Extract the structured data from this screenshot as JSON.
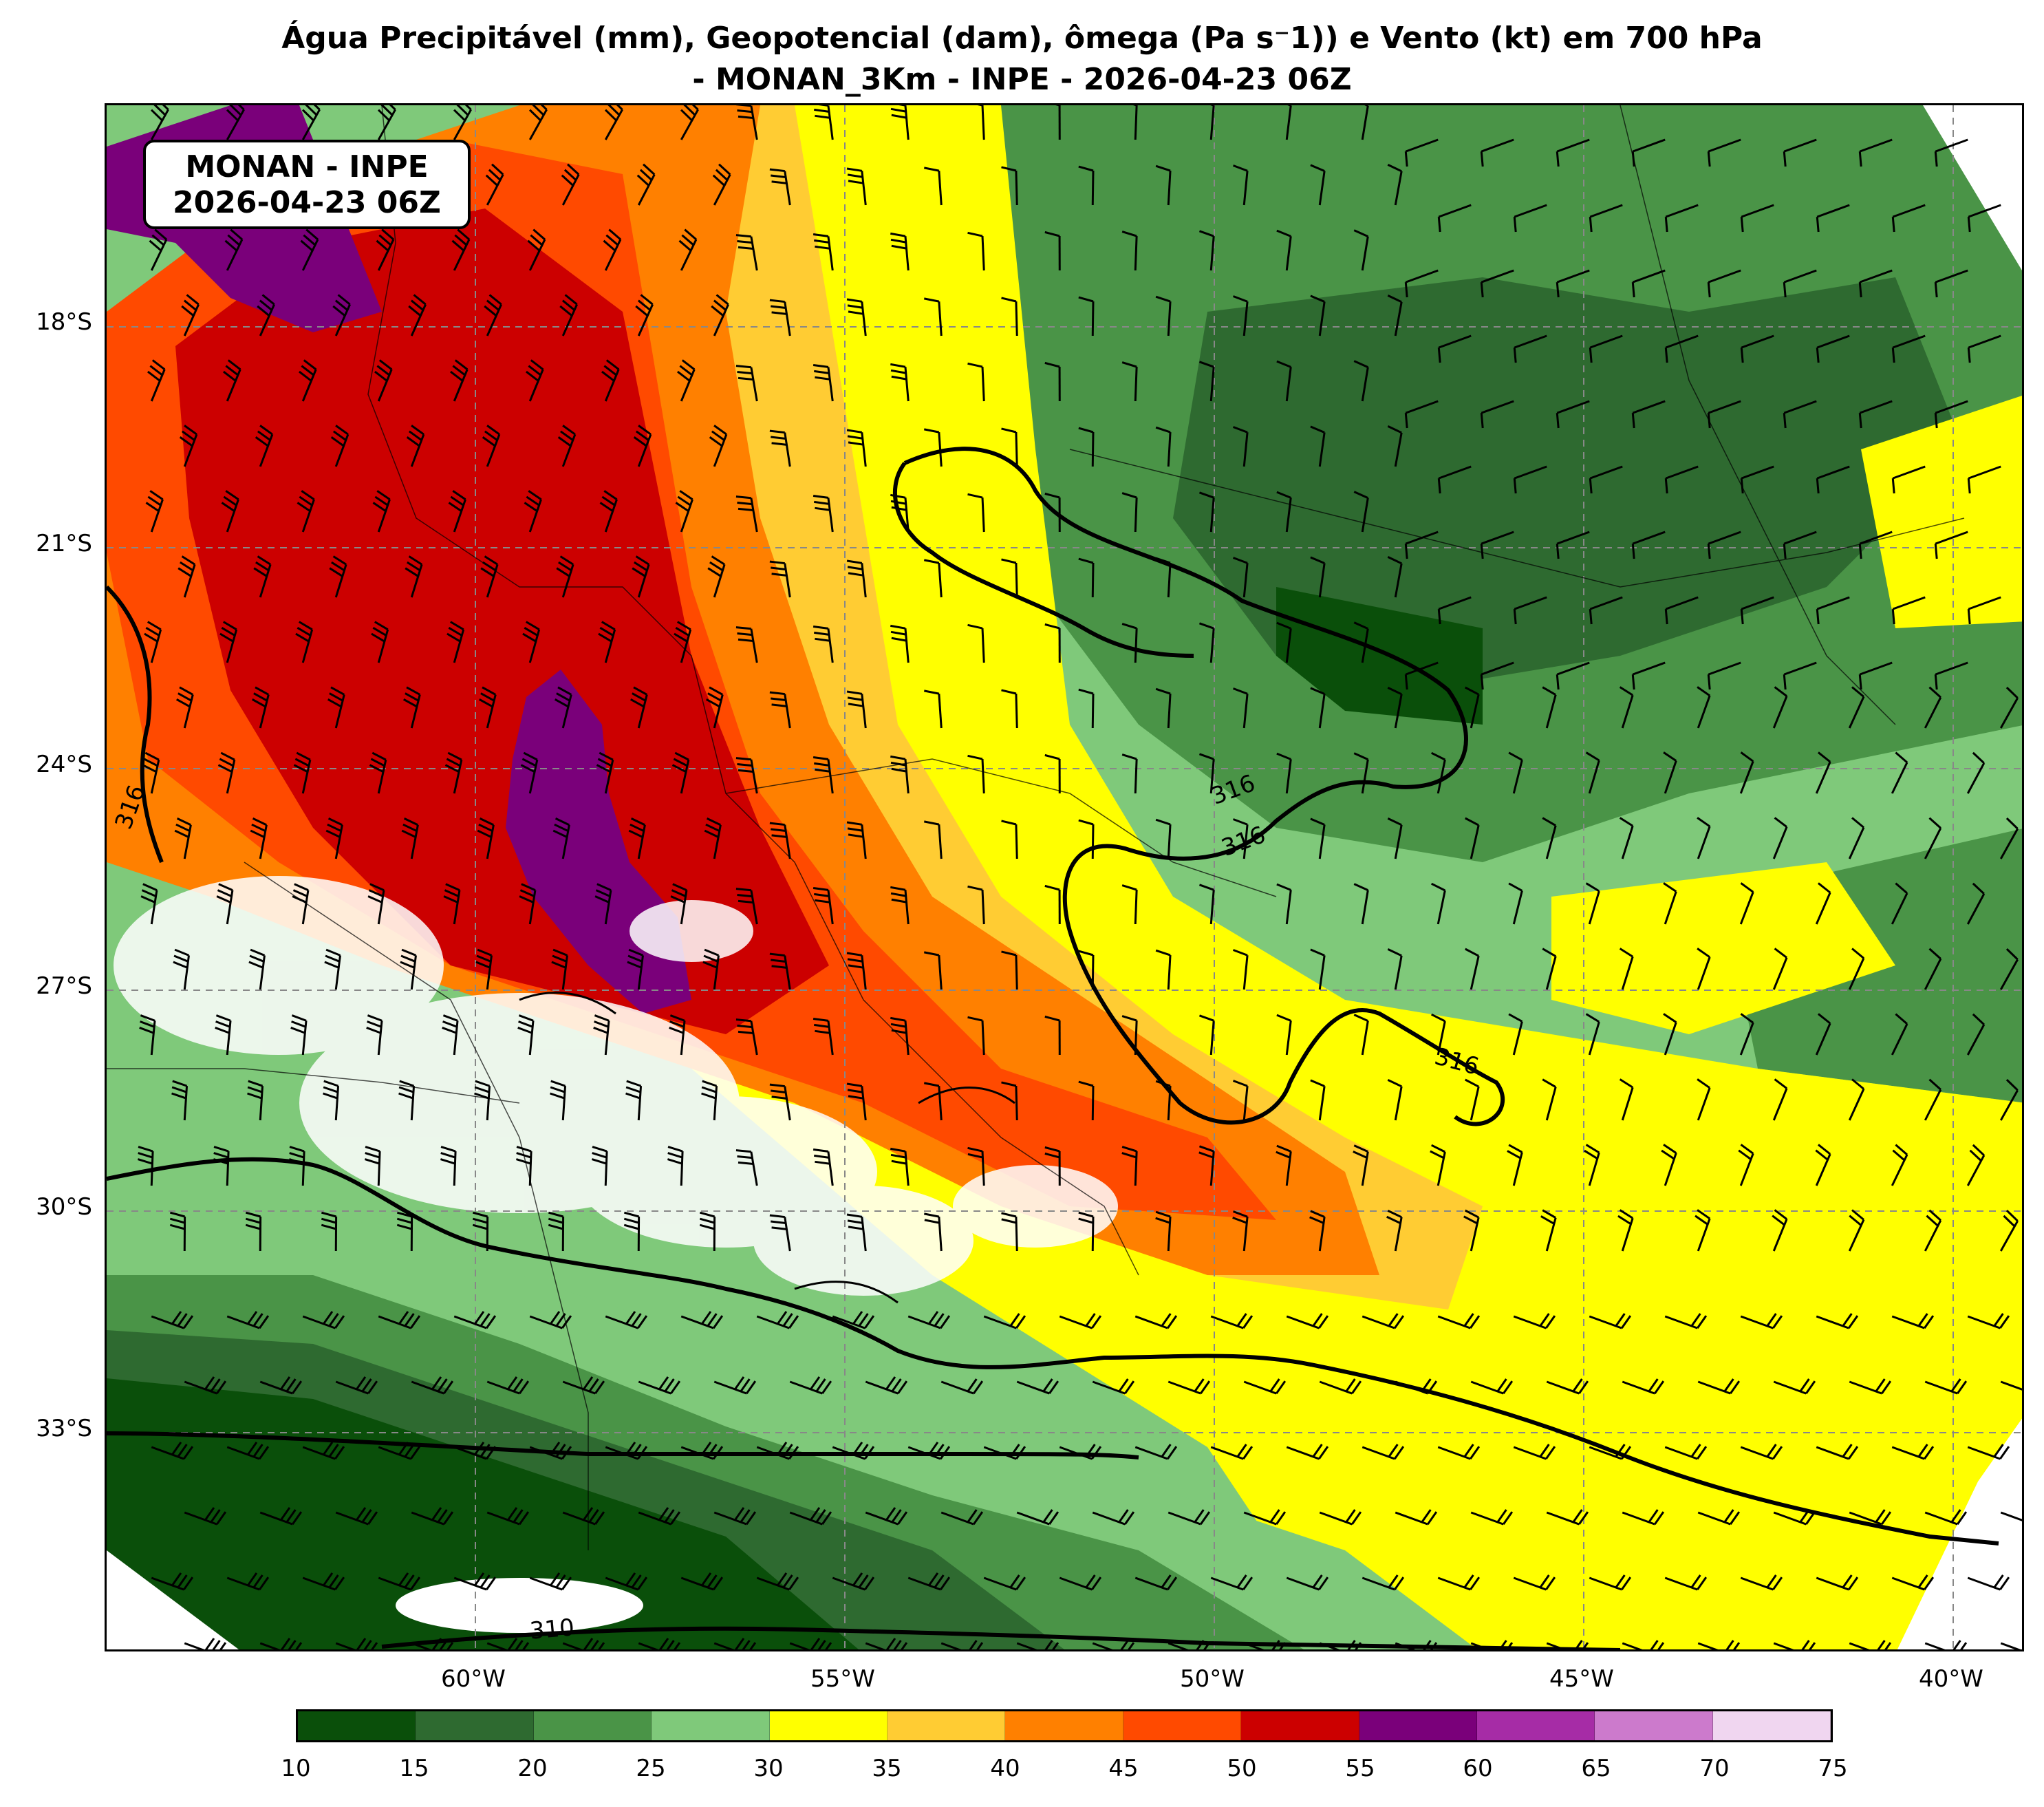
{
  "title_line1": "Água Precipitável (mm), Geopotencial (dam), ômega (Pa s⁻1)) e Vento (kt) em 700 hPa",
  "title_line2": "- MONAN_3Km - INPE - 2026-04-23 06Z",
  "info_box": {
    "line1": "MONAN - INPE",
    "line2": "2026-04-23 06Z"
  },
  "latitude_labels": [
    "18°S",
    "21°S",
    "24°S",
    "27°S",
    "30°S",
    "33°S"
  ],
  "longitude_labels": [
    "60°W",
    "55°W",
    "50°W",
    "45°W",
    "40°W"
  ],
  "contour_labels": [
    "316",
    "316",
    "316",
    "316",
    "310"
  ],
  "colorbar": {
    "ticks": [
      "10",
      "15",
      "20",
      "25",
      "30",
      "35",
      "40",
      "45",
      "50",
      "55",
      "60",
      "65",
      "70",
      "75"
    ],
    "colors": [
      "#0a4f0a",
      "#2e6a30",
      "#4a9447",
      "#7fc97a",
      "#ffff00",
      "#ffcc33",
      "#ff8000",
      "#ff4a00",
      "#cc0000",
      "#7a007a",
      "#a62ca6",
      "#cc7acc",
      "#f0d6f0"
    ]
  },
  "map_extent": {
    "lon_min": -65,
    "lon_max": -39,
    "lat_min": -36.5,
    "lat_max": -15.5
  },
  "precipitable_water_regions": [
    {
      "name": "far-south-dark",
      "value_range": "10-15",
      "color": "#0a4f0a"
    },
    {
      "name": "south-band",
      "value_range": "15-20",
      "color": "#2e6a30"
    },
    {
      "name": "southeast-green",
      "value_range": "20-25",
      "color": "#4a9447"
    },
    {
      "name": "east-light-green",
      "value_range": "25-30",
      "color": "#7fc97a"
    },
    {
      "name": "yellow-band",
      "value_range": "30-35",
      "color": "#ffff00"
    },
    {
      "name": "orange-band",
      "value_range": "40-45",
      "color": "#ff8000"
    },
    {
      "name": "red-core",
      "value_range": "50-55",
      "color": "#cc0000"
    },
    {
      "name": "purple-core",
      "value_range": "55-60",
      "color": "#7a007a"
    }
  ]
}
